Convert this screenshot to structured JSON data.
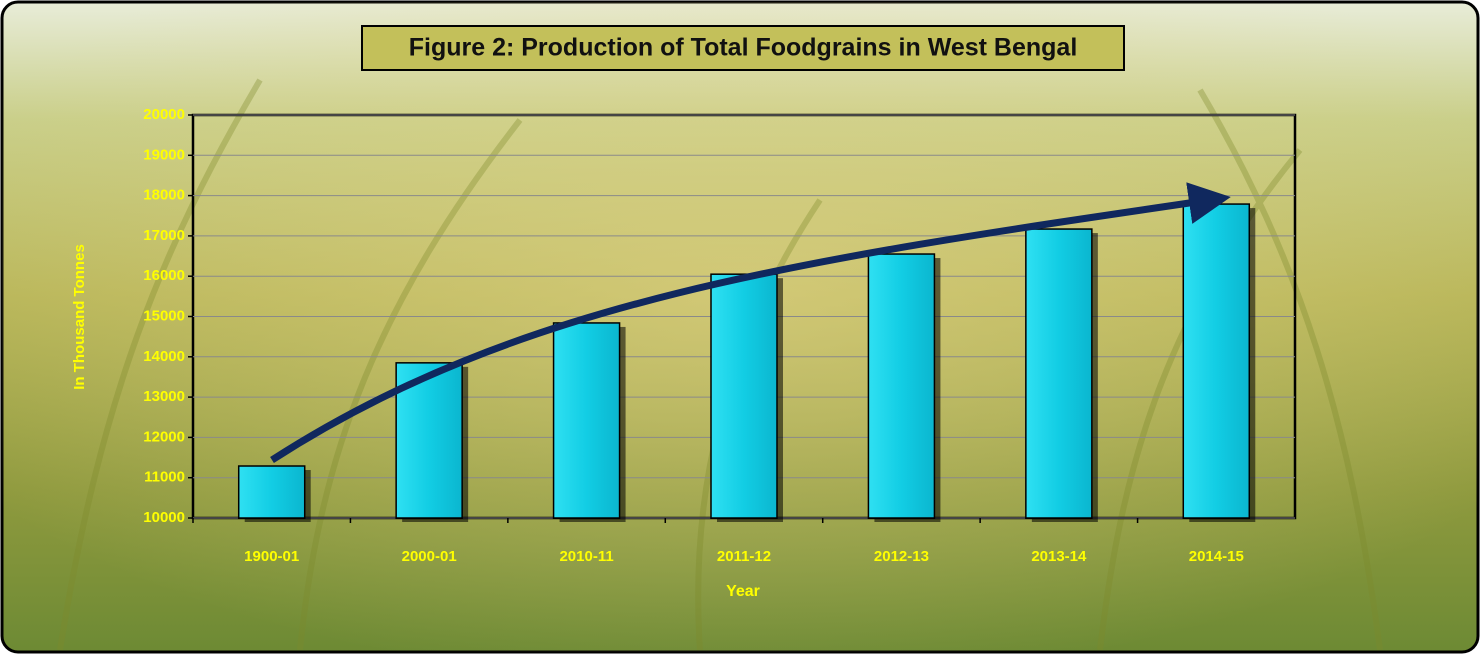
{
  "chart_data": {
    "type": "bar",
    "title": "Figure 2: Production of Total Foodgrains  in West Bengal",
    "x_label": "Year",
    "y_label": "In Thousand Tonnes",
    "categories": [
      "1900-01",
      "2000-01",
      "2010-11",
      "2011-12",
      "2012-13",
      "2013-14",
      "2014-15"
    ],
    "values": [
      11290,
      13850,
      14840,
      16050,
      16550,
      17170,
      17790
    ],
    "color": "#16d0e6",
    "ylim": [
      10000,
      20000
    ],
    "yticks": [
      10000,
      11000,
      12000,
      13000,
      14000,
      15000,
      16000,
      17000,
      18000,
      19000,
      20000
    ],
    "grid": true
  }
}
